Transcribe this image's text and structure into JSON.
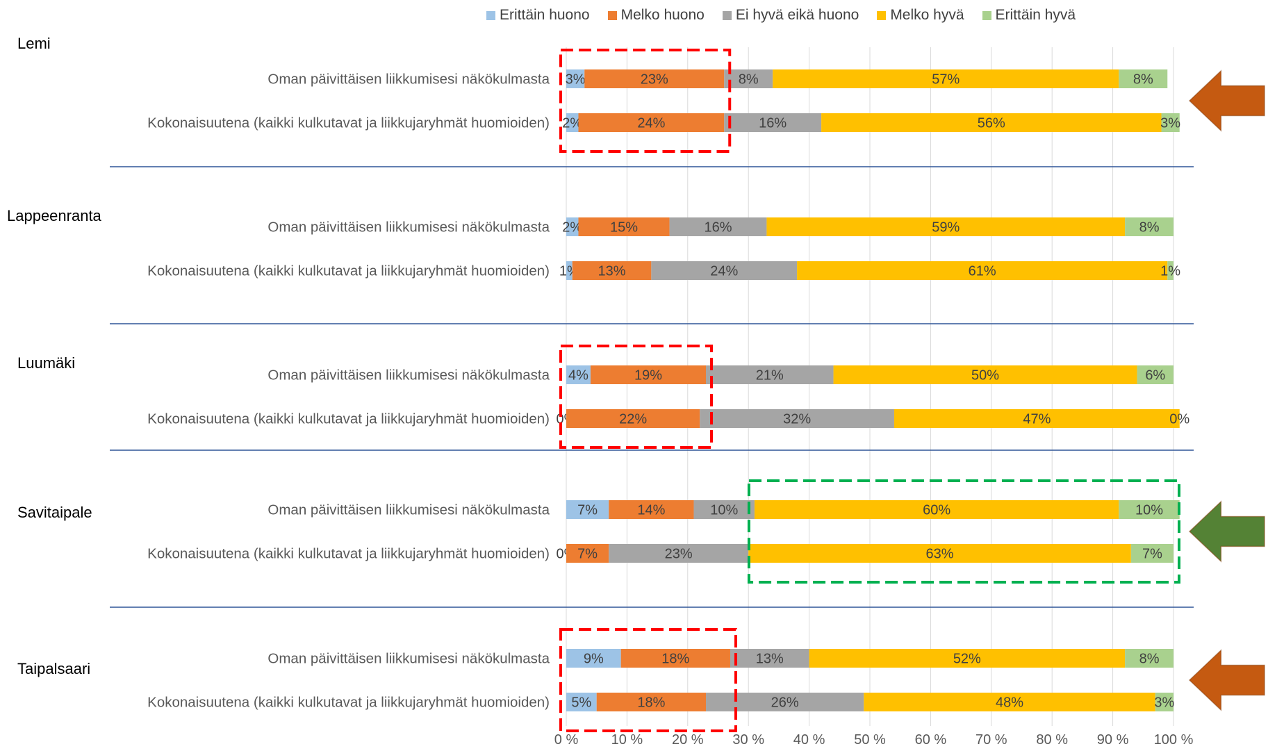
{
  "chart_data": {
    "type": "bar",
    "orientation": "horizontal",
    "stacking": "percent",
    "xlim": [
      0,
      100
    ],
    "x_ticks": [
      "0 %",
      "10 %",
      "20 %",
      "30 %",
      "40 %",
      "50 %",
      "60 %",
      "70 %",
      "80 %",
      "90 %",
      "100 %"
    ],
    "grid": "vertical",
    "legend_position": "top",
    "series": [
      {
        "name": "Erittäin huono",
        "color": "#9DC3E6"
      },
      {
        "name": "Melko huono",
        "color": "#ED7D31"
      },
      {
        "name": "Ei hyvä eikä huono",
        "color": "#A5A5A5"
      },
      {
        "name": "Melko hyvä",
        "color": "#FFC000"
      },
      {
        "name": "Erittäin hyvä",
        "color": "#A9D18E"
      }
    ],
    "groups": [
      {
        "name": "Lemi",
        "highlight_arrow": "orange",
        "rows": [
          {
            "label": "Oman päivittäisen liikkumisesi näkökulmasta",
            "values": [
              3,
              23,
              8,
              57,
              8
            ],
            "labels": [
              "3%",
              "23%",
              "8%",
              "57%",
              "8%"
            ]
          },
          {
            "label": "Kokonaisuutena (kaikki kulkutavat ja liikkujaryhmät huomioiden)",
            "values": [
              2,
              24,
              16,
              56,
              3
            ],
            "labels": [
              "2%",
              "24%",
              "16%",
              "56%",
              "3%"
            ]
          }
        ],
        "highlight_box": {
          "color": "red",
          "from": 0,
          "to": 26
        }
      },
      {
        "name": "Lappeenranta",
        "rows": [
          {
            "label": "Oman päivittäisen liikkumisesi näkökulmasta",
            "values": [
              2,
              15,
              16,
              59,
              8
            ],
            "labels": [
              "2%",
              "15%",
              "16%",
              "59%",
              "8%"
            ]
          },
          {
            "label": "Kokonaisuutena (kaikki kulkutavat ja liikkujaryhmät huomioiden)",
            "values": [
              1,
              13,
              24,
              61,
              1
            ],
            "labels": [
              "1%",
              "13%",
              "24%",
              "61%",
              "1%"
            ]
          }
        ]
      },
      {
        "name": "Luumäki",
        "rows": [
          {
            "label": "Oman päivittäisen liikkumisesi näkökulmasta",
            "values": [
              4,
              19,
              21,
              50,
              6
            ],
            "labels": [
              "4%",
              "19%",
              "21%",
              "50%",
              "6%"
            ]
          },
          {
            "label": "Kokonaisuutena (kaikki kulkutavat ja liikkujaryhmät huomioiden)",
            "values": [
              0,
              22,
              32,
              47,
              0
            ],
            "labels": [
              "0%",
              "22%",
              "32%",
              "47%",
              "0%"
            ]
          }
        ],
        "highlight_box": {
          "color": "red",
          "from": 0,
          "to": 23
        }
      },
      {
        "name": "Savitaipale",
        "highlight_arrow": "green",
        "rows": [
          {
            "label": "Oman päivittäisen liikkumisesi näkökulmasta",
            "values": [
              7,
              14,
              10,
              60,
              10
            ],
            "labels": [
              "7%",
              "14%",
              "10%",
              "60%",
              "10%"
            ]
          },
          {
            "label": "Kokonaisuutena (kaikki kulkutavat ja liikkujaryhmät huomioiden)",
            "values": [
              0,
              7,
              23,
              63,
              7
            ],
            "labels": [
              "0%",
              "7%",
              "23%",
              "63%",
              "7%"
            ]
          }
        ],
        "highlight_box": {
          "color": "green",
          "from": 31,
          "to": 100
        }
      },
      {
        "name": "Taipalsaari",
        "highlight_arrow": "orange",
        "rows": [
          {
            "label": "Oman päivittäisen liikkumisesi näkökulmasta",
            "values": [
              9,
              18,
              13,
              52,
              8
            ],
            "labels": [
              "9%",
              "18%",
              "13%",
              "52%",
              "8%"
            ]
          },
          {
            "label": "Kokonaisuutena (kaikki kulkutavat ja liikkujaryhmät huomioiden)",
            "values": [
              5,
              18,
              26,
              48,
              3
            ],
            "labels": [
              "5%",
              "18%",
              "26%",
              "48%",
              "3%"
            ]
          }
        ],
        "highlight_box": {
          "color": "red",
          "from": 0,
          "to": 27
        }
      }
    ]
  },
  "colors": {
    "gridline": "#D9D9D9",
    "separator": "#2F5597",
    "red_box": "#FF0000",
    "green_box": "#00B050",
    "orange_arrow": "#C55A11",
    "green_arrow": "#548235"
  }
}
